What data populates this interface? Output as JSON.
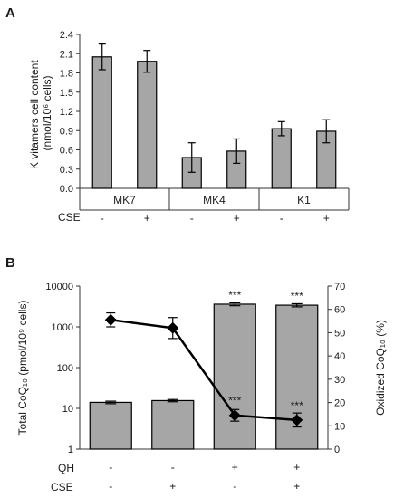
{
  "figure": {
    "panel_a_label": "A",
    "panel_b_label": "B",
    "panel_a": {
      "ylabel_line1": "K vitamers cell content",
      "ylabel_line2": "(nmol/10⁶ cells)",
      "row_label_cse": "CSE",
      "sign_minus": "-",
      "sign_plus": "+"
    },
    "panel_b": {
      "ylabel_left": "Total CoQ₁₀ (pmol/10⁹ cells)",
      "ylabel_right": "Oxidized CoQ₁₀ (%)",
      "row_label_qh": "QH",
      "row_label_cse": "CSE",
      "significance": "***"
    }
  },
  "chart_data": [
    {
      "type": "bar",
      "panel": "A",
      "groups": [
        "MK7",
        "MK4",
        "K1"
      ],
      "cse": [
        "-",
        "+",
        "-",
        "+",
        "-",
        "+"
      ],
      "values": [
        2.05,
        1.98,
        0.48,
        0.58,
        0.93,
        0.89
      ],
      "errors": [
        0.2,
        0.17,
        0.23,
        0.19,
        0.11,
        0.18
      ],
      "ylim": [
        0,
        2.4
      ],
      "yticks": [
        "0.0",
        "0.3",
        "0.6",
        "0.9",
        "1.2",
        "1.5",
        "1.8",
        "2.1",
        "2.4"
      ],
      "ylabel": "K vitamers cell content (nmol/10⁶ cells)",
      "grid": false,
      "colors": {
        "bar": "#a6a6a6",
        "edge": "#000000"
      }
    },
    {
      "type": "bar",
      "panel": "B",
      "y_scale": "log",
      "qh": [
        "-",
        "-",
        "+",
        "+"
      ],
      "cse": [
        "-",
        "+",
        "-",
        "+"
      ],
      "values": [
        14,
        15.5,
        3600,
        3400
      ],
      "errors": [
        1,
        1,
        300,
        300
      ],
      "ylim": [
        1,
        10000
      ],
      "yticks": [
        "1",
        "10",
        "100",
        "1000",
        "10000"
      ],
      "ylabel": "Total CoQ₁₀ (pmol/10⁹ cells)",
      "significance": [
        "",
        "",
        "***",
        "***"
      ],
      "secondary_series": {
        "type": "line",
        "marker": "diamond",
        "values": [
          55.5,
          52,
          14.5,
          12.5
        ],
        "errors": [
          3,
          4.5,
          2.5,
          3
        ],
        "ylim": [
          0,
          70
        ],
        "yticks": [
          "0",
          "10",
          "20",
          "30",
          "40",
          "50",
          "60",
          "70"
        ],
        "ylabel": "Oxidized CoQ₁₀ (%)",
        "significance": [
          "",
          "",
          "***",
          "***"
        ]
      },
      "grid": false,
      "colors": {
        "bar": "#a6a6a6",
        "edge": "#000000",
        "line": "#000000"
      }
    }
  ]
}
